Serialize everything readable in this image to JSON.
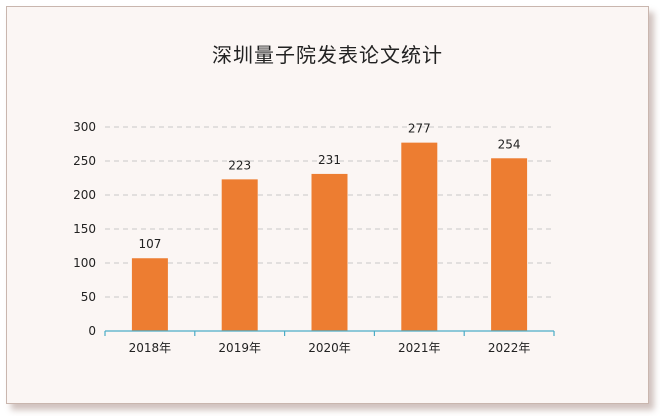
{
  "chart_data": {
    "type": "bar",
    "title": "深圳量子院发表论文统计",
    "categories": [
      "2018年",
      "2019年",
      "2020年",
      "2021年",
      "2022年"
    ],
    "values": [
      107,
      223,
      231,
      277,
      254
    ],
    "ylim": [
      0,
      300
    ],
    "yticks": [
      "0",
      "50",
      "100",
      "150",
      "200",
      "250",
      "300"
    ],
    "grid": true,
    "bar_color": "#ed7d31",
    "axis_color": "#4bacc6"
  }
}
